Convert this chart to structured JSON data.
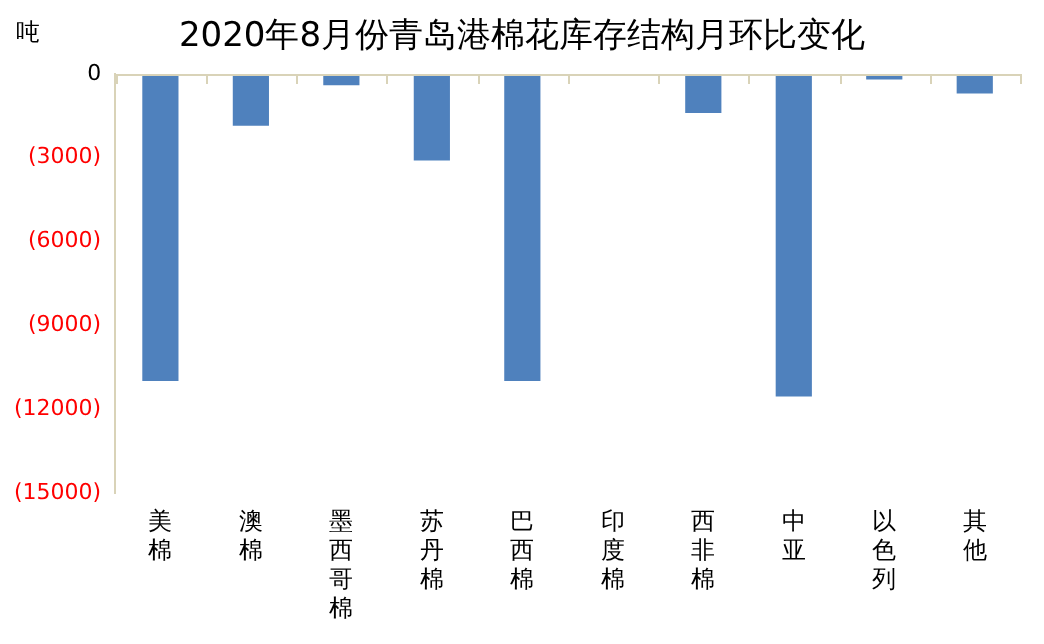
{
  "chart_data": {
    "type": "bar",
    "title": "2020年8月份青岛港棉花库存结构月环比变化",
    "ylabel": "吨",
    "categories": [
      "美棉",
      "澳棉",
      "墨西哥棉",
      "苏丹棉",
      "巴西棉",
      "印度棉",
      "西非棉",
      "中亚",
      "以色列",
      "其他"
    ],
    "values": [
      -11000,
      -1850,
      -400,
      -3100,
      -11000,
      0,
      -1400,
      -11550,
      -200,
      -700
    ],
    "color": "#4f81bd",
    "ylim": [
      -15000,
      0
    ],
    "yticks": [
      {
        "value": -15000,
        "label": "(15000)"
      },
      {
        "value": -12000,
        "label": "(12000)"
      },
      {
        "value": -9000,
        "label": "(9000)"
      },
      {
        "value": -6000,
        "label": "(6000)"
      },
      {
        "value": -3000,
        "label": "(3000)"
      },
      0
    ],
    "grid": false,
    "legend": false
  }
}
